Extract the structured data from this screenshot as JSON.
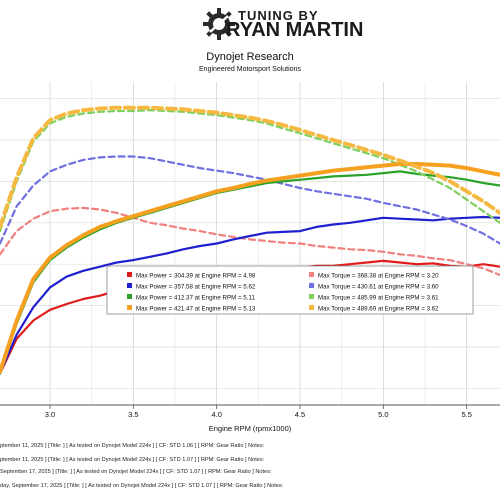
{
  "brand": {
    "line1": "TUNING BY",
    "line2": "RYAN MARTIN",
    "logo_icon": "gear-icon"
  },
  "chart_data": {
    "type": "line",
    "title": "Dynojet Research",
    "subtitle": "Engineered Motorsport Solutions",
    "xlabel": "Engine RPM (rpmx1000)",
    "ylabel": "",
    "xlim": [
      2.7,
      5.7
    ],
    "ylim": [
      130,
      520
    ],
    "x_ticks": [
      "3.0",
      "3.5",
      "4.0",
      "4.5",
      "5.0",
      "5.5"
    ],
    "grid": true,
    "legend_position": "center-right",
    "series": [
      {
        "name": "Max Power = 304.39 at Engine RPM = 4.98",
        "kind": "power",
        "color": "#e01b1b",
        "x": [
          2.7,
          2.8,
          2.9,
          3.0,
          3.1,
          3.2,
          3.3,
          3.4,
          3.5,
          3.6,
          3.7,
          3.8,
          3.9,
          4.0,
          4.1,
          4.2,
          4.3,
          4.4,
          4.5,
          4.6,
          4.7,
          4.8,
          4.9,
          5.0,
          5.1,
          5.2,
          5.3,
          5.4,
          5.5,
          5.6,
          5.7
        ],
        "y": [
          168,
          210,
          232,
          245,
          252,
          258,
          262,
          268,
          272,
          275,
          278,
          282,
          285,
          287,
          290,
          293,
          294,
          295,
          296,
          298,
          298,
          300,
          302,
          304,
          302,
          300,
          301,
          298,
          297,
          300,
          297
        ]
      },
      {
        "name": "Max Torque = 368.38 at Engine RPM = 3.20",
        "kind": "torque",
        "color": "#f08080",
        "x": [
          2.7,
          2.8,
          2.9,
          3.0,
          3.1,
          3.2,
          3.3,
          3.4,
          3.5,
          3.6,
          3.7,
          3.8,
          3.9,
          4.0,
          4.1,
          4.2,
          4.3,
          4.4,
          4.5,
          4.6,
          4.7,
          4.8,
          4.9,
          5.0,
          5.1,
          5.2,
          5.3,
          5.4,
          5.5,
          5.6,
          5.7
        ],
        "y": [
          312,
          340,
          355,
          364,
          367,
          368,
          366,
          362,
          356,
          350,
          347,
          343,
          340,
          336,
          333,
          330,
          328,
          326,
          325,
          322,
          320,
          318,
          317,
          315,
          312,
          310,
          307,
          305,
          300,
          295,
          287
        ]
      },
      {
        "name": "Max Power = 357.58 at Engine RPM = 5.62",
        "kind": "power",
        "color": "#1f1fcf",
        "x": [
          2.7,
          2.8,
          2.9,
          3.0,
          3.1,
          3.2,
          3.3,
          3.4,
          3.5,
          3.6,
          3.7,
          3.8,
          3.9,
          4.0,
          4.1,
          4.2,
          4.3,
          4.4,
          4.5,
          4.6,
          4.7,
          4.8,
          4.9,
          5.0,
          5.1,
          5.2,
          5.3,
          5.4,
          5.5,
          5.6,
          5.7
        ],
        "y": [
          168,
          215,
          248,
          272,
          285,
          292,
          297,
          302,
          305,
          309,
          313,
          318,
          322,
          325,
          330,
          334,
          338,
          339,
          340,
          345,
          348,
          350,
          353,
          356,
          355,
          354,
          353,
          355,
          356,
          357,
          356
        ]
      },
      {
        "name": "Max Torque = 430.61 at Engine RPM = 3.60",
        "kind": "torque",
        "color": "#6f6fe0",
        "x": [
          2.7,
          2.8,
          2.9,
          3.0,
          3.1,
          3.2,
          3.3,
          3.4,
          3.5,
          3.6,
          3.7,
          3.8,
          3.9,
          4.0,
          4.1,
          4.2,
          4.3,
          4.4,
          4.5,
          4.6,
          4.7,
          4.8,
          4.9,
          5.0,
          5.1,
          5.2,
          5.3,
          5.4,
          5.5,
          5.6,
          5.7
        ],
        "y": [
          325,
          370,
          395,
          412,
          420,
          426,
          429,
          430,
          430,
          428,
          424,
          420,
          416,
          413,
          410,
          406,
          402,
          397,
          392,
          388,
          385,
          382,
          379,
          374,
          370,
          366,
          360,
          354,
          346,
          337,
          325
        ]
      },
      {
        "name": "Max Power = 412.37 at Engine RPM = 5.11",
        "kind": "power",
        "color": "#29a329",
        "x": [
          2.7,
          2.8,
          2.9,
          3.0,
          3.1,
          3.2,
          3.3,
          3.4,
          3.5,
          3.6,
          3.7,
          3.8,
          3.9,
          4.0,
          4.1,
          4.2,
          4.3,
          4.4,
          4.5,
          4.6,
          4.7,
          4.8,
          4.9,
          5.0,
          5.1,
          5.2,
          5.3,
          5.4,
          5.5,
          5.6,
          5.7
        ],
        "y": [
          168,
          228,
          278,
          305,
          320,
          332,
          342,
          350,
          356,
          362,
          368,
          374,
          380,
          386,
          390,
          394,
          398,
          400,
          402,
          404,
          406,
          407,
          408,
          410,
          412,
          409,
          407,
          405,
          402,
          398,
          395
        ]
      },
      {
        "name": "Max Torque = 485.99 at Engine RPM = 3.61",
        "kind": "torque",
        "color": "#7fd05f",
        "x": [
          2.7,
          2.8,
          2.9,
          3.0,
          3.1,
          3.2,
          3.3,
          3.4,
          3.5,
          3.6,
          3.7,
          3.8,
          3.9,
          4.0,
          4.1,
          4.2,
          4.3,
          4.4,
          4.5,
          4.6,
          4.7,
          4.8,
          4.9,
          5.0,
          5.1,
          5.2,
          5.3,
          5.4,
          5.5,
          5.6,
          5.7
        ],
        "y": [
          340,
          400,
          448,
          470,
          478,
          482,
          484,
          485,
          485,
          486,
          485,
          484,
          482,
          480,
          477,
          474,
          470,
          464,
          458,
          452,
          446,
          440,
          434,
          428,
          420,
          412,
          402,
          392,
          378,
          364,
          350
        ]
      },
      {
        "name": "Max Power = 421.47 at Engine RPM = 5.13",
        "kind": "power",
        "color": "#f5a020",
        "x": [
          2.7,
          2.8,
          2.9,
          3.0,
          3.1,
          3.2,
          3.3,
          3.4,
          3.5,
          3.6,
          3.7,
          3.8,
          3.9,
          4.0,
          4.1,
          4.2,
          4.3,
          4.4,
          4.5,
          4.6,
          4.7,
          4.8,
          4.9,
          5.0,
          5.1,
          5.2,
          5.3,
          5.4,
          5.5,
          5.6,
          5.7
        ],
        "y": [
          170,
          232,
          282,
          308,
          323,
          335,
          345,
          352,
          358,
          364,
          370,
          376,
          382,
          388,
          392,
          397,
          401,
          404,
          407,
          410,
          413,
          415,
          417,
          419,
          421,
          421,
          420,
          419,
          416,
          412,
          408
        ]
      },
      {
        "name": "Max Torque = 489.69 at Engine RPM = 3.62",
        "kind": "torque",
        "color": "#f5b840",
        "x": [
          2.7,
          2.8,
          2.9,
          3.0,
          3.1,
          3.2,
          3.3,
          3.4,
          3.5,
          3.6,
          3.7,
          3.8,
          3.9,
          4.0,
          4.1,
          4.2,
          4.3,
          4.4,
          4.5,
          4.6,
          4.7,
          4.8,
          4.9,
          5.0,
          5.1,
          5.2,
          5.3,
          5.4,
          5.5,
          5.6,
          5.7
        ],
        "y": [
          345,
          405,
          452,
          474,
          482,
          486,
          488,
          489,
          489,
          489,
          488,
          487,
          485,
          483,
          480,
          477,
          473,
          468,
          462,
          456,
          450,
          444,
          438,
          432,
          425,
          418,
          410,
          400,
          388,
          376,
          362
        ]
      }
    ]
  },
  "footer": {
    "lines": [
      "ptember 11, 2025 ]  [Title:  ]  [ As tested on Dynojet Model 224x ]  [ CF: STD 1.06 ]  [ RPM: Gear Ratio ]  Notes:",
      "ptember 11, 2025 ]  [Title:  ]  [ As tested on Dynojet Model 224x ]  [ CF: STD 1.07 ]  [ RPM: Gear Ratio ]  Notes:",
      "September 17, 2025 ]  [Title:  ]  [ As tested on Dynojet Model 224x ]  [ CF: STD 1.07 ]  [ RPM: Gear Ratio ]  Notes:",
      "day, September 17, 2025 ]  [Title:  ]  [ As tested on Dynojet Model 224x ]  [ CF: STD 1.07 ]  [ RPM: Gear Ratio ]  Notes:"
    ]
  }
}
